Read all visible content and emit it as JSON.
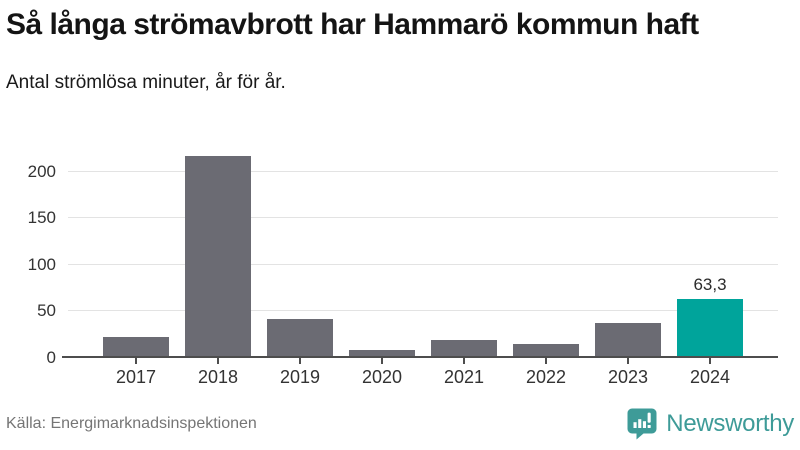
{
  "header": {
    "title": "Så långa strömavbrott har Hammarö kommun haft",
    "subtitle": "Antal strömlösa minuter, år för år."
  },
  "chart_data": {
    "type": "bar",
    "title": "Så långa strömavbrott har Hammarö kommun haft",
    "subtitle": "Antal strömlösa minuter, år för år.",
    "xlabel": "",
    "ylabel": "Antal strömlösa minuter",
    "categories": [
      "2017",
      "2018",
      "2019",
      "2020",
      "2021",
      "2022",
      "2023",
      "2024"
    ],
    "values": [
      23,
      217,
      42,
      9,
      19,
      15,
      38,
      63.3
    ],
    "highlight_index": 7,
    "highlight_value_label": "63,3",
    "yticks": [
      0,
      50,
      100,
      150,
      200
    ],
    "ylim": [
      0,
      234
    ],
    "grid": "horizontal",
    "legend": "none",
    "bar_color": "#6b6b73",
    "highlight_color": "#00a49b",
    "gridline_color": "#e3e3e3",
    "axis_color": "#4d4d4d"
  },
  "footer": {
    "source": "Källa: Energimarknadsinspektionen",
    "brand_name": "Newsworthy",
    "brand_color": "#3e9b98"
  }
}
